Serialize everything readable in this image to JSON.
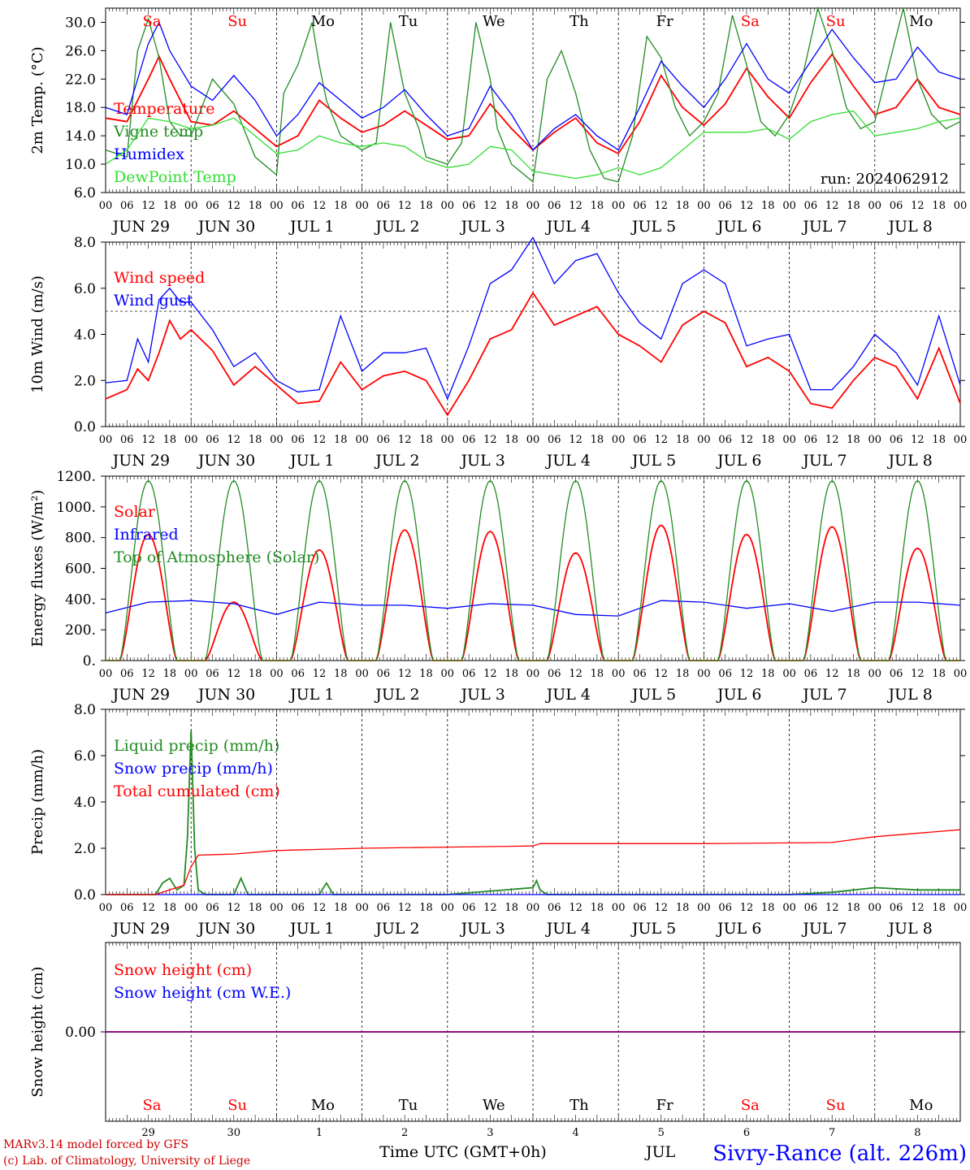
{
  "colors": {
    "red": "#ff0000",
    "blue": "#0000ff",
    "green": "#228b22",
    "lightgreen": "#33dd33",
    "purple": "#800080",
    "darkred": "#cc0000",
    "axis": "#000000"
  },
  "footer": {
    "credit_line1": "MARv3.14 model forced by GFS",
    "credit_line2": "(c) Lab. of Climatology, University of Liege",
    "xaxis_title": "Time UTC (GMT+0h)",
    "station": "Sivry-Rance (alt. 226m)",
    "overlap_label": "JUL"
  },
  "run_label": "run: 2024062912",
  "hour_ticks": [
    "00",
    "06",
    "12",
    "18"
  ],
  "days": [
    {
      "date": "JUN 29",
      "dow": "Sa",
      "weekend": true,
      "num": "29"
    },
    {
      "date": "JUN 30",
      "dow": "Su",
      "weekend": true,
      "num": "30"
    },
    {
      "date": "JUL  1",
      "dow": "Mo",
      "weekend": false,
      "num": "1"
    },
    {
      "date": "JUL  2",
      "dow": "Tu",
      "weekend": false,
      "num": "2"
    },
    {
      "date": "JUL  3",
      "dow": "We",
      "weekend": false,
      "num": "3"
    },
    {
      "date": "JUL  4",
      "dow": "Th",
      "weekend": false,
      "num": "4"
    },
    {
      "date": "JUL  5",
      "dow": "Fr",
      "weekend": false,
      "num": "5"
    },
    {
      "date": "JUL  6",
      "dow": "Sa",
      "weekend": true,
      "num": "6"
    },
    {
      "date": "JUL  7",
      "dow": "Su",
      "weekend": true,
      "num": "7"
    },
    {
      "date": "JUL  8",
      "dow": "Mo",
      "weekend": false,
      "num": "8"
    }
  ],
  "chart_data": [
    {
      "type": "line",
      "ylabel": "2m Temp. (°C)",
      "ylim": [
        6.0,
        32.0
      ],
      "yticks": [
        "6.0",
        "10.0",
        "14.0",
        "18.0",
        "22.0",
        "26.0",
        "30.0"
      ],
      "ytick_values": [
        6,
        10,
        14,
        18,
        22,
        26,
        30
      ],
      "x_unit": "hours since JUN 29 00 UTC",
      "series": [
        {
          "name": "Temperature",
          "color": "#ff0000",
          "x": [
            0,
            6,
            12,
            15,
            18,
            24,
            30,
            36,
            42,
            48,
            54,
            60,
            66,
            72,
            78,
            84,
            90,
            96,
            102,
            108,
            114,
            120,
            126,
            132,
            138,
            144,
            150,
            156,
            162,
            168,
            174,
            180,
            186,
            192,
            198,
            204,
            210,
            216,
            222,
            228,
            234,
            240
          ],
          "values": [
            16.5,
            16,
            22,
            25.2,
            22,
            16,
            15.5,
            17.5,
            15,
            12.5,
            14,
            19,
            16.5,
            14.5,
            15.5,
            17.5,
            15.5,
            13.5,
            14,
            18.5,
            15,
            12,
            14.5,
            16.5,
            13,
            11.5,
            16,
            22.5,
            18,
            15.5,
            18.5,
            23.5,
            19.5,
            16.5,
            21.5,
            25.5,
            21,
            17,
            18,
            22,
            18,
            17
          ]
        },
        {
          "name": "Vigne temp",
          "color": "#228b22",
          "x": [
            0,
            6,
            9,
            12,
            15,
            18,
            21,
            24,
            30,
            36,
            42,
            48,
            50,
            54,
            58,
            60,
            62,
            66,
            72,
            76,
            80,
            84,
            88,
            90,
            96,
            100,
            104,
            108,
            110,
            114,
            120,
            124,
            128,
            132,
            136,
            140,
            144,
            148,
            152,
            156,
            160,
            164,
            168,
            172,
            176,
            180,
            184,
            188,
            192,
            196,
            200,
            204,
            208,
            212,
            216,
            220,
            224,
            228,
            232,
            236,
            240
          ],
          "values": [
            12,
            11,
            26,
            30.5,
            25,
            16,
            14,
            14,
            22,
            18.5,
            11,
            8.5,
            20,
            24,
            30,
            24,
            19,
            14,
            12,
            13,
            30,
            20,
            15,
            11,
            10,
            13,
            30,
            22,
            15,
            10,
            7.5,
            22,
            26,
            20,
            12,
            8,
            7.5,
            14,
            28,
            25,
            18,
            14,
            16,
            20,
            31,
            24,
            16,
            14,
            17,
            23,
            32,
            26,
            18,
            15,
            16,
            24,
            32,
            22,
            17,
            15,
            16
          ]
        },
        {
          "name": "Humidex",
          "color": "#0000ff",
          "x": [
            0,
            6,
            12,
            15,
            18,
            24,
            30,
            36,
            42,
            48,
            54,
            60,
            66,
            72,
            78,
            84,
            90,
            96,
            102,
            108,
            114,
            120,
            126,
            132,
            138,
            144,
            150,
            156,
            162,
            168,
            174,
            180,
            186,
            192,
            198,
            204,
            210,
            216,
            222,
            228,
            234,
            240
          ],
          "values": [
            18,
            17,
            27,
            30,
            26,
            21,
            19,
            22.5,
            19,
            14,
            17,
            21.5,
            19,
            16.5,
            18,
            20.5,
            17,
            14,
            15,
            21,
            17,
            12,
            15,
            17,
            14,
            12,
            18,
            24.5,
            21,
            18,
            22,
            27,
            22,
            20,
            24.5,
            29,
            25,
            21.5,
            22,
            26.5,
            23,
            22
          ]
        },
        {
          "name": "DewPoint Temp",
          "color": "#33dd33",
          "x": [
            0,
            6,
            12,
            18,
            24,
            30,
            36,
            42,
            48,
            54,
            60,
            66,
            72,
            78,
            84,
            90,
            96,
            102,
            108,
            114,
            120,
            126,
            132,
            138,
            144,
            150,
            156,
            162,
            168,
            174,
            180,
            186,
            192,
            198,
            204,
            210,
            216,
            222,
            228,
            234,
            240
          ],
          "values": [
            10,
            12,
            16.5,
            16,
            15,
            15.5,
            16.5,
            14,
            11.5,
            12,
            14,
            13,
            12.5,
            13,
            12.5,
            10.5,
            9.5,
            10,
            12.5,
            12,
            9,
            8.5,
            8,
            8.5,
            9.5,
            8.5,
            9.5,
            12,
            14.5,
            14.5,
            14.5,
            15,
            13.5,
            16,
            17,
            17.5,
            14,
            14.5,
            15,
            16,
            16.5
          ]
        }
      ]
    },
    {
      "type": "line",
      "ylabel": "10m Wind (m/s)",
      "ylim": [
        0.0,
        8.0
      ],
      "yticks": [
        "0.0",
        "2.0",
        "4.0",
        "6.0",
        "8.0"
      ],
      "ytick_values": [
        0,
        2,
        4,
        6,
        8
      ],
      "ref_line": 5.0,
      "series": [
        {
          "name": "Wind speed",
          "color": "#ff0000",
          "x": [
            0,
            6,
            9,
            12,
            15,
            18,
            21,
            24,
            30,
            36,
            42,
            48,
            54,
            60,
            66,
            72,
            78,
            84,
            90,
            96,
            102,
            108,
            114,
            120,
            126,
            132,
            138,
            144,
            150,
            156,
            162,
            168,
            174,
            180,
            186,
            192,
            198,
            204,
            210,
            216,
            222,
            228,
            234,
            240
          ],
          "values": [
            1.2,
            1.6,
            2.5,
            2.0,
            3.2,
            4.6,
            3.8,
            4.2,
            3.3,
            1.8,
            2.6,
            1.8,
            1.0,
            1.1,
            2.8,
            1.6,
            2.2,
            2.4,
            2.0,
            0.5,
            2.0,
            3.8,
            4.2,
            5.8,
            4.4,
            4.8,
            5.2,
            4.0,
            3.5,
            2.8,
            4.4,
            5.0,
            4.5,
            2.6,
            3.0,
            2.4,
            1.0,
            0.8,
            2.0,
            3.0,
            2.6,
            1.2,
            3.4,
            1.0
          ]
        },
        {
          "name": "Wind gust",
          "color": "#0000ff",
          "x": [
            0,
            6,
            9,
            12,
            15,
            18,
            21,
            24,
            30,
            36,
            42,
            48,
            54,
            60,
            66,
            72,
            78,
            84,
            90,
            96,
            102,
            108,
            114,
            120,
            126,
            132,
            138,
            144,
            150,
            156,
            162,
            168,
            174,
            180,
            186,
            192,
            198,
            204,
            210,
            216,
            222,
            228,
            234,
            240
          ],
          "values": [
            1.9,
            2.0,
            3.8,
            2.8,
            5.5,
            6.0,
            5.4,
            5.4,
            4.2,
            2.6,
            3.2,
            2.0,
            1.5,
            1.6,
            4.8,
            2.4,
            3.2,
            3.2,
            3.4,
            1.2,
            3.5,
            6.2,
            6.8,
            8.2,
            6.2,
            7.2,
            7.5,
            5.8,
            4.5,
            3.8,
            6.2,
            6.8,
            6.2,
            3.5,
            3.8,
            4.0,
            1.6,
            1.6,
            2.6,
            4.0,
            3.2,
            1.8,
            4.8,
            1.8
          ]
        }
      ]
    },
    {
      "type": "line",
      "ylabel": "Energy fluxes (W/m²)",
      "ylim": [
        0,
        1200
      ],
      "yticks": [
        "0.",
        "200.",
        "400.",
        "600.",
        "800.",
        "1000.",
        "1200."
      ],
      "ytick_values": [
        0,
        200,
        400,
        600,
        800,
        1000,
        1200
      ],
      "series": [
        {
          "name": "Solar",
          "color": "#ff0000",
          "peaks": [
            820,
            380,
            720,
            850,
            840,
            700,
            880,
            820,
            870,
            730
          ]
        },
        {
          "name": "Infrared",
          "color": "#0000ff",
          "x": [
            0,
            12,
            24,
            36,
            48,
            60,
            72,
            84,
            96,
            108,
            120,
            132,
            144,
            156,
            168,
            180,
            192,
            204,
            216,
            228,
            240
          ],
          "values": [
            310,
            380,
            390,
            370,
            300,
            380,
            360,
            360,
            340,
            370,
            360,
            300,
            290,
            390,
            380,
            340,
            370,
            320,
            380,
            380,
            360
          ]
        },
        {
          "name": "Top of Atmosphere (Solar)",
          "color": "#228b22",
          "peaks": [
            1170,
            1170,
            1170,
            1170,
            1170,
            1170,
            1170,
            1170,
            1170,
            1170
          ]
        }
      ]
    },
    {
      "type": "line",
      "ylabel": "Precip (mm/h)",
      "ylim": [
        0.0,
        8.0
      ],
      "yticks": [
        "0.0",
        "2.0",
        "4.0",
        "6.0",
        "8.0"
      ],
      "ytick_values": [
        0,
        2,
        4,
        6,
        8
      ],
      "series": [
        {
          "name": "Liquid precip (mm/h)",
          "color": "#228b22",
          "x": [
            0,
            14,
            16,
            18,
            20,
            22,
            23,
            24,
            25,
            26,
            28,
            30,
            36,
            38,
            40,
            48,
            60,
            62,
            64,
            72,
            96,
            120,
            121,
            122,
            124,
            180,
            192,
            204,
            216,
            228,
            240
          ],
          "values": [
            0,
            0,
            0.5,
            0.7,
            0.2,
            0.4,
            2.5,
            7.1,
            2.0,
            0.2,
            0,
            0,
            0,
            0.7,
            0,
            0,
            0,
            0.5,
            0,
            0,
            0,
            0.3,
            0.6,
            0.2,
            0,
            0,
            0,
            0.1,
            0.3,
            0.2,
            0.2
          ]
        },
        {
          "name": "Snow precip (mm/h)",
          "color": "#0000ff",
          "x": [
            0,
            240
          ],
          "values": [
            0,
            0
          ]
        },
        {
          "name": "Total cumulated (cm)",
          "color": "#ff0000",
          "x": [
            0,
            14,
            18,
            22,
            24,
            26,
            36,
            48,
            60,
            72,
            96,
            120,
            122,
            144,
            168,
            204,
            216,
            240
          ],
          "values": [
            0,
            0,
            0.2,
            0.4,
            1.2,
            1.7,
            1.75,
            1.9,
            1.95,
            2.0,
            2.05,
            2.1,
            2.2,
            2.2,
            2.2,
            2.25,
            2.5,
            2.8
          ]
        }
      ]
    },
    {
      "type": "line",
      "ylabel": "Snow height (cm)",
      "yticks": [
        "0.00"
      ],
      "ytick_values": [
        0
      ],
      "ylim": [
        -1,
        1
      ],
      "series": [
        {
          "name": "Snow height (cm)",
          "color": "#ff0000",
          "x": [
            0,
            240
          ],
          "values": [
            0,
            0
          ]
        },
        {
          "name": "Snow height (cm W.E.)",
          "color": "#0000ff",
          "x": [
            0,
            240
          ],
          "values": [
            0,
            0
          ]
        }
      ]
    }
  ]
}
